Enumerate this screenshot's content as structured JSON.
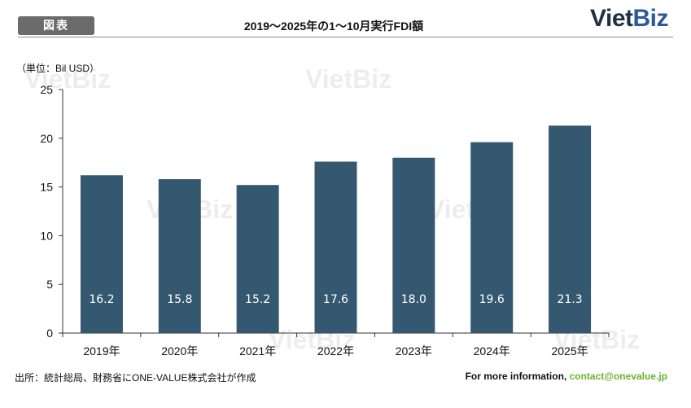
{
  "header": {
    "tag": "図表",
    "title": "2019～2025年の1～10月実行FDI額",
    "logo_part1": "Viet",
    "logo_part2": "Biz"
  },
  "watermark": "VietBiz",
  "footer": {
    "source": "出所：統計総局、財務省にONE-VALUE株式会社が作成",
    "contact_prefix": "For more information,",
    "contact_email": "contact@onevalue.jp"
  },
  "colors": {
    "bar": "#34586f",
    "bar_label": "#ffffff",
    "axis": "#333333",
    "logo_dark": "#1f2f44",
    "logo_blue": "#2a5a9a",
    "email": "#6ab22e"
  },
  "chart_data": {
    "type": "bar",
    "title": "2019～2025年の1～10月実行FDI額",
    "unit_label": "（単位：Bil USD）",
    "categories": [
      "2019年",
      "2020年",
      "2021年",
      "2022年",
      "2023年",
      "2024年",
      "2025年"
    ],
    "values": [
      16.2,
      15.8,
      15.2,
      17.6,
      18.0,
      19.6,
      21.3
    ],
    "data_labels": [
      "16.2",
      "15.8",
      "15.2",
      "17.6",
      "18.0",
      "19.6",
      "21.3"
    ],
    "ylim": [
      0,
      25
    ],
    "yticks": [
      "0",
      "5",
      "10",
      "15",
      "20",
      "25"
    ],
    "grid": false,
    "legend": "none"
  }
}
